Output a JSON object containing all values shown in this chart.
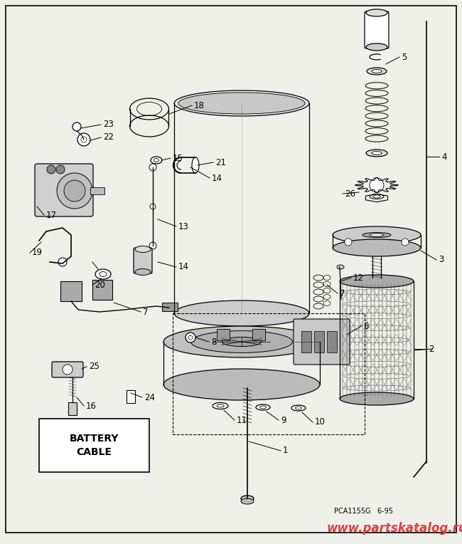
{
  "bg_color": "#f0f0eb",
  "border_color": "#000000",
  "watermark_text": "www.partskatalog.ru",
  "watermark_color": "#e04040",
  "code_text": "PCA1155G   6-95",
  "figsize": [
    6.5,
    7.64
  ],
  "dpi": 100
}
